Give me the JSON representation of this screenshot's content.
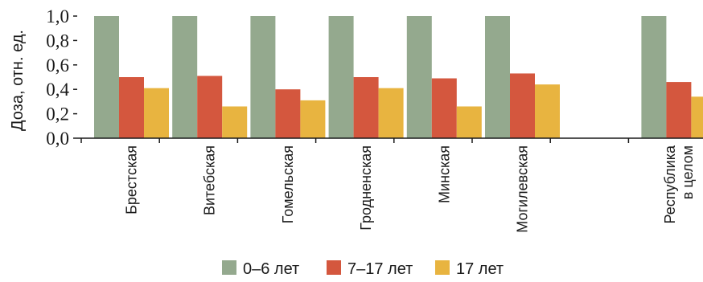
{
  "chart_data": {
    "type": "bar",
    "ylabel": "Доза, отн. ед.",
    "ylim": [
      0,
      1
    ],
    "yticks": [
      "0,0",
      "0,2",
      "0,4",
      "0,6",
      "0,8",
      "1,0"
    ],
    "categories": [
      [
        "Брестская"
      ],
      [
        "Витебская"
      ],
      [
        "Гомельская"
      ],
      [
        "Гродненская"
      ],
      [
        "Минская"
      ],
      [
        "Могилевская"
      ],
      [],
      [
        "Республика",
        "в целом"
      ]
    ],
    "series": [
      {
        "name": "0–6 лет",
        "color": "#94a98e",
        "values": [
          1.0,
          1.0,
          1.0,
          1.0,
          1.0,
          1.0,
          null,
          1.0
        ]
      },
      {
        "name": "7–17 лет",
        "color": "#d4573e",
        "values": [
          0.5,
          0.51,
          0.4,
          0.5,
          0.49,
          0.53,
          null,
          0.46
        ]
      },
      {
        "name": "17 лет",
        "color": "#e8b440",
        "values": [
          0.41,
          0.26,
          0.31,
          0.41,
          0.26,
          0.44,
          null,
          0.34
        ]
      }
    ],
    "legend_position": "bottom",
    "grid": false
  }
}
